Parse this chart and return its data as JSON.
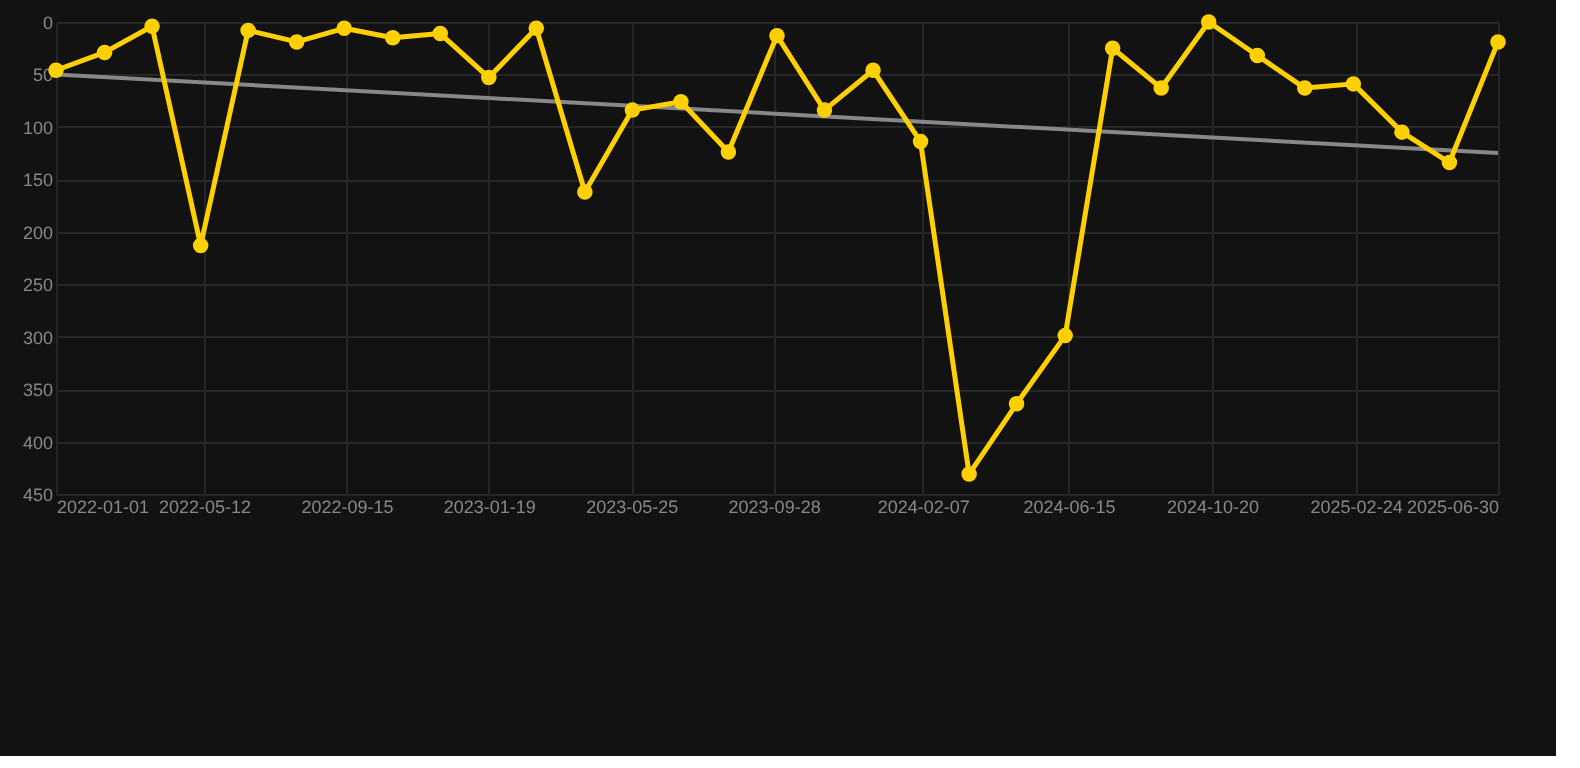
{
  "chart_data": {
    "type": "line",
    "x": [
      "2022-01-01",
      "2022-02-13",
      "2022-03-27",
      "2022-05-09",
      "2022-06-20",
      "2022-08-02",
      "2022-09-13",
      "2022-10-26",
      "2022-12-07",
      "2023-01-19",
      "2023-03-02",
      "2023-04-14",
      "2023-05-26",
      "2023-07-08",
      "2023-08-19",
      "2023-10-01",
      "2023-11-12",
      "2023-12-25",
      "2024-02-05",
      "2024-03-19",
      "2024-04-30",
      "2024-06-12",
      "2024-07-24",
      "2024-09-05",
      "2024-10-17",
      "2024-11-29",
      "2025-01-10",
      "2025-02-22",
      "2025-04-06",
      "2025-05-18",
      "2025-06-30"
    ],
    "series": [
      {
        "color": "#ffd000",
        "values": [
          46,
          29,
          4,
          213,
          8,
          19,
          6,
          15,
          11,
          53,
          6,
          162,
          84,
          76,
          124,
          13,
          84,
          46,
          114,
          431,
          364,
          299,
          25,
          63,
          0,
          32,
          63,
          59,
          105,
          134,
          19
        ]
      },
      {
        "color": "#888888",
        "marker": "none",
        "x": [
          "2022-01-01",
          "2025-06-30"
        ],
        "values": [
          50,
          125
        ]
      }
    ],
    "marker": "circle",
    "line_style": "solid",
    "ylim": [
      450,
      0
    ],
    "yticks": [
      0,
      50,
      100,
      150,
      200,
      250,
      300,
      350,
      400,
      450
    ],
    "xlim": [
      "2022-01-01",
      "2025-06-30"
    ],
    "xticks": [
      {
        "value": "2022-01-01",
        "label": "2022-01-01"
      },
      {
        "value": "2022-05-12",
        "label": "2022-05-12"
      },
      {
        "value": "2022-09-15",
        "label": "2022-09-15"
      },
      {
        "value": "2023-01-19",
        "label": "2023-01-19"
      },
      {
        "value": "2023-05-25",
        "label": "2023-05-25"
      },
      {
        "value": "2023-09-28",
        "label": "2023-09-28"
      },
      {
        "value": "2024-02-07",
        "label": "2024-02-07"
      },
      {
        "value": "2024-06-15",
        "label": "2024-06-15"
      },
      {
        "value": "2024-10-20",
        "label": "2024-10-20"
      },
      {
        "value": "2025-02-24",
        "label": "2025-02-24"
      },
      {
        "value": "2025-06-30",
        "label": "2025-06-30"
      }
    ],
    "grid": true
  }
}
